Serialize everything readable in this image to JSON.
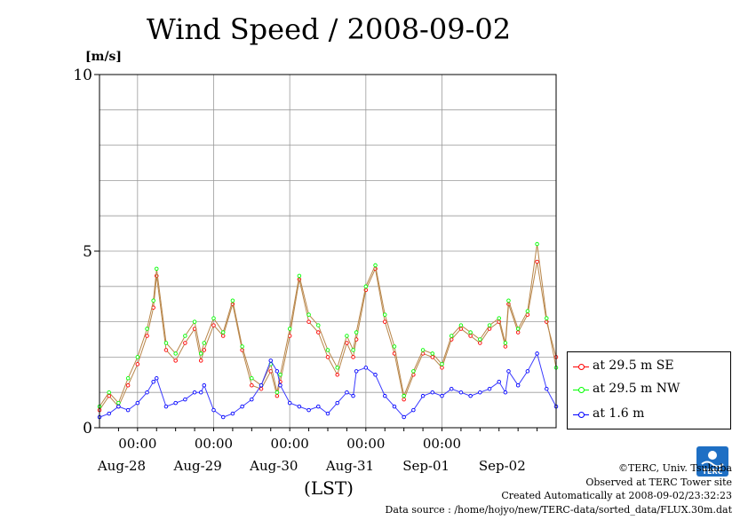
{
  "title": "Wind Speed / 2008-09-02",
  "unit_label": "[m/s]",
  "x_axis_label": "(LST)",
  "legend": [
    {
      "label": "at 29.5 m SE",
      "color": "#ff0000"
    },
    {
      "label": "at 29.5 m NW",
      "color": "#00ff00"
    },
    {
      "label": "at 1.6 m",
      "color": "#0000ff"
    }
  ],
  "footer": {
    "copyright": "©TERC, Univ. Tsukuba",
    "observed": "Observed at TERC Tower site",
    "created": "Created Automatically at 2008-09-02/23:32:23",
    "source": "Data source : /home/hojyo/new/TERC-data/sorted_data/FLUX.30m.dat"
  },
  "logo": {
    "text": "TERC",
    "icon": "terc-logo-icon"
  },
  "chart_data": {
    "type": "line",
    "ylim": [
      0,
      10
    ],
    "y_ticks": [
      0,
      5,
      10
    ],
    "xlim_hours": [
      0,
      144
    ],
    "x_tick_labels": [
      {
        "hour": 12,
        "label": "00:00"
      },
      {
        "hour": 36,
        "label": "00:00"
      },
      {
        "hour": 60,
        "label": "00:00"
      },
      {
        "hour": 84,
        "label": "00:00"
      },
      {
        "hour": 108,
        "label": "00:00"
      }
    ],
    "date_labels": [
      {
        "hour": 0,
        "label": "Aug-28"
      },
      {
        "hour": 24,
        "label": "Aug-29"
      },
      {
        "hour": 48,
        "label": "Aug-30"
      },
      {
        "hour": 72,
        "label": "Aug-31"
      },
      {
        "hour": 96,
        "label": "Sep-01"
      },
      {
        "hour": 120,
        "label": "Sep-02"
      }
    ],
    "series": [
      {
        "name": "at 29.5 m SE",
        "color": "#ff0000",
        "x": [
          0,
          3,
          6,
          9,
          12,
          15,
          17,
          18,
          21,
          24,
          27,
          30,
          32,
          33,
          36,
          39,
          42,
          45,
          48,
          51,
          54,
          56,
          57,
          60,
          63,
          66,
          69,
          72,
          75,
          78,
          80,
          81,
          84,
          87,
          90,
          93,
          96,
          99,
          102,
          105,
          108,
          111,
          114,
          117,
          120,
          123,
          126,
          128,
          129,
          132,
          135,
          138,
          141,
          144
        ],
        "y": [
          0.5,
          0.9,
          0.6,
          1.2,
          1.8,
          2.6,
          3.4,
          4.3,
          2.2,
          1.9,
          2.4,
          2.8,
          1.9,
          2.2,
          2.9,
          2.6,
          3.5,
          2.2,
          1.2,
          1.1,
          1.6,
          0.9,
          1.3,
          2.6,
          4.2,
          3.0,
          2.7,
          2.0,
          1.5,
          2.4,
          2.0,
          2.5,
          3.9,
          4.5,
          3.0,
          2.1,
          0.8,
          1.5,
          2.1,
          2.0,
          1.7,
          2.5,
          2.8,
          2.6,
          2.4,
          2.8,
          3.0,
          2.3,
          3.5,
          2.7,
          3.2,
          4.7,
          3.0,
          2.0
        ]
      },
      {
        "name": "at 29.5 m NW",
        "color": "#00ff00",
        "x": [
          0,
          3,
          6,
          9,
          12,
          15,
          17,
          18,
          21,
          24,
          27,
          30,
          32,
          33,
          36,
          39,
          42,
          45,
          48,
          51,
          54,
          56,
          57,
          60,
          63,
          66,
          69,
          72,
          75,
          78,
          80,
          81,
          84,
          87,
          90,
          93,
          96,
          99,
          102,
          105,
          108,
          111,
          114,
          117,
          120,
          123,
          126,
          128,
          129,
          132,
          135,
          138,
          141,
          144
        ],
        "y": [
          0.6,
          1.0,
          0.7,
          1.4,
          2.0,
          2.8,
          3.6,
          4.5,
          2.4,
          2.1,
          2.6,
          3.0,
          2.1,
          2.4,
          3.1,
          2.7,
          3.6,
          2.3,
          1.4,
          1.2,
          1.8,
          1.0,
          1.5,
          2.8,
          4.3,
          3.2,
          2.9,
          2.2,
          1.7,
          2.6,
          2.2,
          2.7,
          4.0,
          4.6,
          3.2,
          2.3,
          0.9,
          1.6,
          2.2,
          2.1,
          1.8,
          2.6,
          2.9,
          2.7,
          2.5,
          2.9,
          3.1,
          2.4,
          3.6,
          2.8,
          3.3,
          5.2,
          3.1,
          1.7
        ]
      },
      {
        "name": "at 1.6 m",
        "color": "#0000ff",
        "x": [
          0,
          3,
          6,
          9,
          12,
          15,
          17,
          18,
          21,
          24,
          27,
          30,
          32,
          33,
          36,
          39,
          42,
          45,
          48,
          51,
          54,
          56,
          57,
          60,
          63,
          66,
          69,
          72,
          75,
          78,
          80,
          81,
          84,
          87,
          90,
          93,
          96,
          99,
          102,
          105,
          108,
          111,
          114,
          117,
          120,
          123,
          126,
          128,
          129,
          132,
          135,
          138,
          141,
          144
        ],
        "y": [
          0.3,
          0.4,
          0.6,
          0.5,
          0.7,
          1.0,
          1.3,
          1.4,
          0.6,
          0.7,
          0.8,
          1.0,
          1.0,
          1.2,
          0.5,
          0.3,
          0.4,
          0.6,
          0.8,
          1.2,
          1.9,
          1.6,
          1.2,
          0.7,
          0.6,
          0.5,
          0.6,
          0.4,
          0.7,
          1.0,
          0.9,
          1.6,
          1.7,
          1.5,
          0.9,
          0.6,
          0.3,
          0.5,
          0.9,
          1.0,
          0.9,
          1.1,
          1.0,
          0.9,
          1.0,
          1.1,
          1.3,
          1.0,
          1.6,
          1.2,
          1.6,
          2.1,
          1.1,
          0.6
        ]
      }
    ]
  }
}
